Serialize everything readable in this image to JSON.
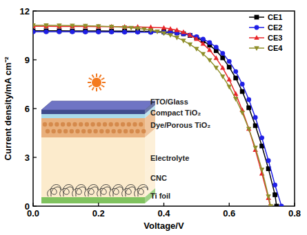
{
  "chart_data": {
    "type": "line",
    "x_label": "Voltage/V",
    "y_label": "Current density/mA cm⁻²",
    "xlim": [
      0,
      0.8
    ],
    "xticks": [
      {
        "value": 0,
        "label": "0.0"
      },
      0.2,
      0.4,
      0.6,
      0.8
    ],
    "ylim": [
      0,
      12
    ],
    "yticks": [
      0,
      3,
      6,
      9,
      12
    ],
    "grid": false,
    "legend": "top-right",
    "annotations": [
      "FTO/Glass",
      "Compact TiO₂",
      "Dye/Porous TiO₂",
      "Electrolyte",
      "CNC",
      "Ti foil"
    ],
    "series": [
      {
        "name": "CE1",
        "color": "#000000",
        "marker": "square",
        "x": [
          0,
          0.04,
          0.08,
          0.12,
          0.16,
          0.2,
          0.24,
          0.28,
          0.32,
          0.36,
          0.4,
          0.42,
          0.44,
          0.46,
          0.48,
          0.5,
          0.52,
          0.54,
          0.56,
          0.58,
          0.6,
          0.62,
          0.64,
          0.66,
          0.68,
          0.7,
          0.72,
          0.74,
          0.745
        ],
        "values": [
          10.78,
          10.78,
          10.78,
          10.77,
          10.77,
          10.77,
          10.76,
          10.76,
          10.75,
          10.74,
          10.72,
          10.7,
          10.66,
          10.6,
          10.5,
          10.36,
          10.16,
          9.9,
          9.56,
          9.12,
          8.55,
          7.88,
          7.05,
          6.05,
          4.95,
          3.7,
          2.3,
          0.7,
          0
        ]
      },
      {
        "name": "CE2",
        "color": "#1f1fe6",
        "marker": "circle",
        "x": [
          0,
          0.04,
          0.08,
          0.12,
          0.16,
          0.2,
          0.24,
          0.28,
          0.32,
          0.36,
          0.4,
          0.42,
          0.44,
          0.46,
          0.48,
          0.5,
          0.52,
          0.54,
          0.56,
          0.58,
          0.6,
          0.62,
          0.64,
          0.66,
          0.68,
          0.7,
          0.72,
          0.74,
          0.76
        ],
        "values": [
          10.72,
          10.72,
          10.72,
          10.72,
          10.71,
          10.71,
          10.71,
          10.7,
          10.7,
          10.69,
          10.68,
          10.67,
          10.64,
          10.59,
          10.52,
          10.42,
          10.27,
          10.06,
          9.78,
          9.4,
          8.9,
          8.28,
          7.5,
          6.55,
          5.45,
          4.2,
          2.8,
          1.3,
          0
        ]
      },
      {
        "name": "CE3",
        "color": "#e8262a",
        "marker": "triangle",
        "x": [
          0,
          0.04,
          0.08,
          0.12,
          0.16,
          0.2,
          0.24,
          0.28,
          0.32,
          0.36,
          0.4,
          0.42,
          0.44,
          0.46,
          0.48,
          0.5,
          0.52,
          0.54,
          0.56,
          0.58,
          0.6,
          0.62,
          0.64,
          0.66,
          0.68,
          0.7,
          0.72,
          0.725
        ],
        "values": [
          11.06,
          11.06,
          11.05,
          11.05,
          11.05,
          11.04,
          11.04,
          11.03,
          11.02,
          11.0,
          10.96,
          10.9,
          10.82,
          10.7,
          10.52,
          10.28,
          9.98,
          9.6,
          9.1,
          8.5,
          7.78,
          6.9,
          5.9,
          4.75,
          3.45,
          2.0,
          0.5,
          0
        ]
      },
      {
        "name": "CE4",
        "color": "#8f8f2a",
        "marker": "triangle-down",
        "x": [
          0,
          0.04,
          0.08,
          0.12,
          0.16,
          0.2,
          0.24,
          0.28,
          0.3,
          0.32,
          0.34,
          0.36,
          0.38,
          0.4,
          0.42,
          0.44,
          0.46,
          0.48,
          0.5,
          0.52,
          0.54,
          0.56,
          0.58,
          0.6,
          0.62,
          0.64,
          0.66,
          0.68,
          0.7,
          0.72,
          0.727
        ],
        "values": [
          11.12,
          11.12,
          11.11,
          11.1,
          11.09,
          11.07,
          11.04,
          11.0,
          10.97,
          10.93,
          10.88,
          10.82,
          10.74,
          10.64,
          10.52,
          10.37,
          10.18,
          9.95,
          9.68,
          9.36,
          8.98,
          8.52,
          7.98,
          7.35,
          6.6,
          5.75,
          4.75,
          3.6,
          2.25,
          0.6,
          0
        ]
      }
    ]
  }
}
